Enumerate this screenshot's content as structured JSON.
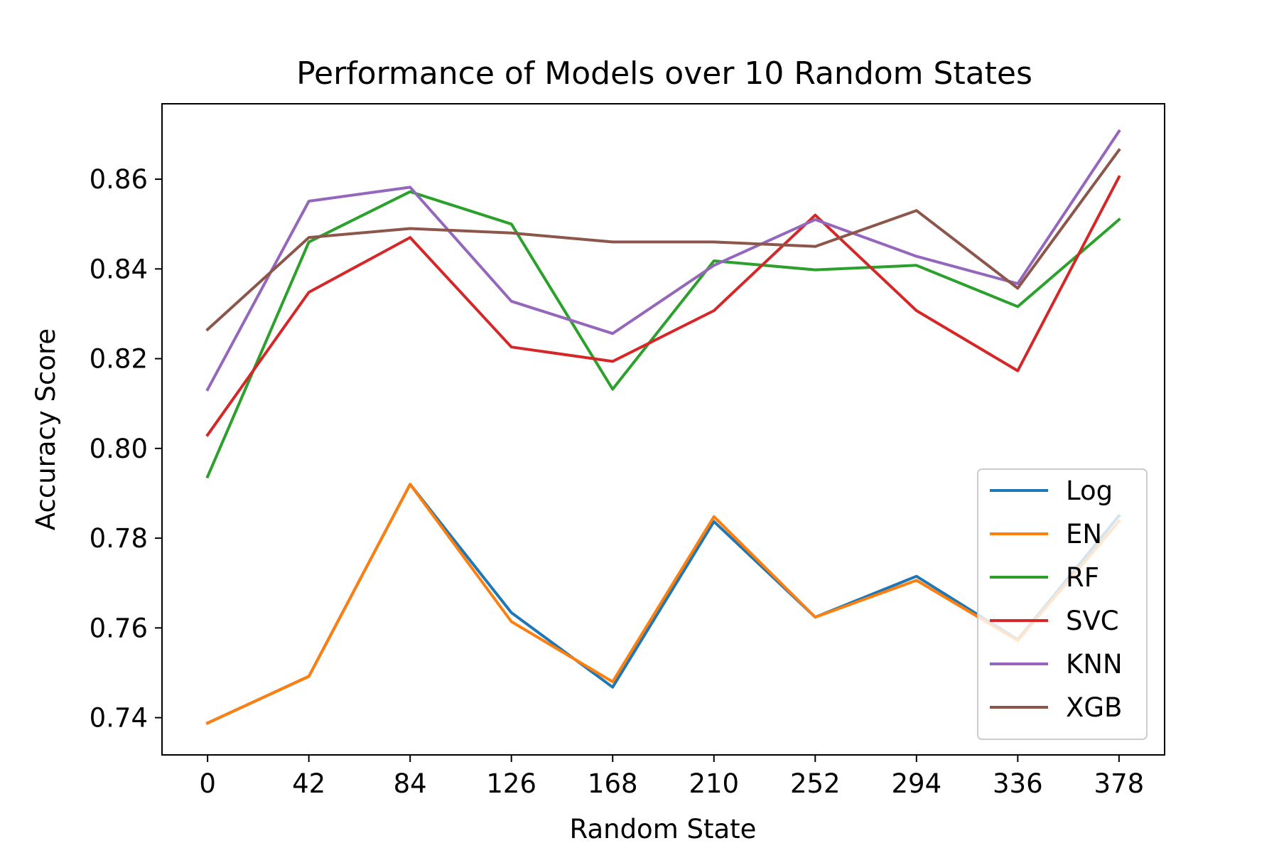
{
  "chart_data": {
    "type": "line",
    "title": "Performance of Models over 10 Random States",
    "xlabel": "Random State",
    "ylabel": "Accuracy Score",
    "x": [
      0,
      42,
      84,
      126,
      168,
      210,
      252,
      294,
      336,
      378
    ],
    "xlim": [
      -18.9,
      396.9
    ],
    "ylim": [
      0.7317,
      0.8768
    ],
    "yticks": [
      "0.74",
      "0.76",
      "0.78",
      "0.80",
      "0.82",
      "0.84",
      "0.86"
    ],
    "ytick_values": [
      0.74,
      0.76,
      0.78,
      0.8,
      0.82,
      0.84,
      0.86
    ],
    "xticks": [
      "0",
      "42",
      "84",
      "126",
      "168",
      "210",
      "252",
      "294",
      "336",
      "378"
    ],
    "grid": false,
    "legend_position": "lower-right",
    "series": [
      {
        "name": "Log",
        "color": "#1f77b4",
        "values": [
          0.7388,
          0.7492,
          0.792,
          0.7634,
          0.7468,
          0.7837,
          0.7624,
          0.7715,
          0.7574,
          0.785
        ]
      },
      {
        "name": "EN",
        "color": "#ff7f0e",
        "values": [
          0.7388,
          0.7492,
          0.792,
          0.7614,
          0.748,
          0.7848,
          0.7624,
          0.7706,
          0.7572,
          0.7838
        ]
      },
      {
        "name": "RF",
        "color": "#2ca02c",
        "values": [
          0.7937,
          0.846,
          0.8572,
          0.85,
          0.8132,
          0.8418,
          0.8398,
          0.8408,
          0.8316,
          0.851
        ]
      },
      {
        "name": "SVC",
        "color": "#d62728",
        "values": [
          0.803,
          0.8348,
          0.847,
          0.8226,
          0.8194,
          0.8307,
          0.852,
          0.8307,
          0.8173,
          0.8605
        ]
      },
      {
        "name": "KNN",
        "color": "#9467bd",
        "values": [
          0.8131,
          0.8551,
          0.8582,
          0.8328,
          0.8256,
          0.8408,
          0.851,
          0.8428,
          0.8367,
          0.8707
        ]
      },
      {
        "name": "XGB",
        "color": "#8c564b",
        "values": [
          0.8265,
          0.847,
          0.849,
          0.848,
          0.846,
          0.846,
          0.845,
          0.853,
          0.8357,
          0.8665
        ]
      }
    ]
  }
}
